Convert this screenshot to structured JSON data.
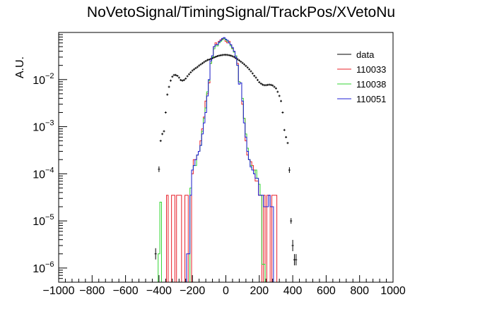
{
  "chart_data": {
    "type": "histogram",
    "title": "NoVetoSignal/TimingSignal/TrackPos/XVetoNu",
    "xlabel": "",
    "ylabel": "A.U.",
    "xlim": [
      -1000,
      1000
    ],
    "ylim": [
      5e-07,
      0.1
    ],
    "yscale": "log",
    "grid": false,
    "legend_position": "top-right",
    "x_tick_labels": [
      "−1000",
      "−800",
      "−600",
      "−400",
      "−200",
      "0",
      "200",
      "400",
      "600",
      "800",
      "1000"
    ],
    "y_tick_labels": [
      "10",
      "10",
      "10",
      "10",
      "10"
    ],
    "y_tick_exponents": [
      "−6",
      "−5",
      "−4",
      "−3",
      "−2"
    ],
    "series": [
      {
        "name": "data",
        "color": "#000000",
        "style": "points",
        "x": [
          -420,
          -400,
          -390,
          -380,
          -370,
          -360,
          -350,
          -340,
          -330,
          -320,
          -310,
          -300,
          -290,
          -280,
          -270,
          -260,
          -250,
          -240,
          -230,
          -220,
          -210,
          -200,
          -190,
          -180,
          -170,
          -160,
          -150,
          -140,
          -130,
          -120,
          -110,
          -100,
          -90,
          -80,
          -70,
          -60,
          -50,
          -40,
          -30,
          -20,
          -10,
          0,
          10,
          20,
          30,
          40,
          50,
          60,
          70,
          80,
          90,
          100,
          110,
          120,
          130,
          140,
          150,
          160,
          170,
          180,
          190,
          200,
          210,
          220,
          230,
          240,
          250,
          260,
          270,
          280,
          290,
          300,
          310,
          320,
          330,
          340,
          350,
          360,
          370,
          380,
          390,
          400,
          410,
          420
        ],
        "y": [
          2e-06,
          0.000125,
          0.0005,
          0.0007,
          0.0008,
          0.002,
          0.0048,
          0.007,
          0.0095,
          0.0115,
          0.0125,
          0.0125,
          0.012,
          0.011,
          0.0098,
          0.0095,
          0.0098,
          0.0105,
          0.0118,
          0.013,
          0.0142,
          0.0155,
          0.0165,
          0.0175,
          0.0185,
          0.0198,
          0.021,
          0.0222,
          0.0235,
          0.0248,
          0.026,
          0.0265,
          0.0275,
          0.0285,
          0.0295,
          0.0305,
          0.0315,
          0.0322,
          0.0328,
          0.0332,
          0.0335,
          0.0335,
          0.0333,
          0.0328,
          0.0322,
          0.0312,
          0.03,
          0.0285,
          0.027,
          0.0255,
          0.024,
          0.0225,
          0.021,
          0.0195,
          0.018,
          0.0165,
          0.015,
          0.0135,
          0.012,
          0.011,
          0.0098,
          0.0088,
          0.0082,
          0.0078,
          0.0076,
          0.0076,
          0.0077,
          0.0078,
          0.0077,
          0.0075,
          0.007,
          0.0065,
          0.0055,
          0.0045,
          0.0035,
          0.002,
          0.00085,
          0.0006,
          0.00045,
          0.00012,
          1e-05,
          3e-06,
          1.5e-06,
          1.5e-06
        ]
      },
      {
        "name": "110033",
        "color": "#e8202a",
        "style": "step",
        "x": [
          -380,
          -370,
          -360,
          -350,
          -340,
          -330,
          -320,
          -310,
          -300,
          -290,
          -280,
          -270,
          -260,
          -250,
          -240,
          -230,
          -220,
          -210,
          -200,
          -190,
          -180,
          -170,
          -160,
          -150,
          -140,
          -130,
          -120,
          -110,
          -100,
          -90,
          -80,
          -70,
          -60,
          -50,
          -40,
          -30,
          -20,
          -10,
          0,
          10,
          20,
          30,
          40,
          50,
          60,
          70,
          80,
          90,
          100,
          110,
          120,
          130,
          140,
          150,
          160,
          170,
          180,
          190,
          200,
          210,
          220,
          230,
          240,
          250,
          260,
          270,
          280,
          290,
          300
        ],
        "y": [
          0,
          0,
          0,
          3.5e-05,
          0,
          0,
          3.5e-05,
          3.5e-05,
          0,
          3.5e-05,
          3.5e-05,
          3.5e-05,
          0,
          0,
          3.5e-05,
          3.5e-05,
          0,
          0,
          0.0001,
          0.0002,
          0.0002,
          0.00025,
          0.0003,
          0.0005,
          0.0009,
          0.0016,
          0.0035,
          0.005,
          0.0085,
          0.022,
          0.032,
          0.05,
          0.06,
          0.055,
          0.065,
          0.07,
          0.072,
          0.075,
          0.065,
          0.06,
          0.065,
          0.055,
          0.046,
          0.04,
          0.032,
          0.022,
          0.009,
          0.0085,
          0.003,
          0.0015,
          0.0005,
          0.00025,
          0.0002,
          0.00018,
          0.00015,
          0.00012,
          7e-05,
          7e-05,
          3.5e-05,
          3.5e-05,
          0,
          3.5e-05,
          0,
          3.5e-05,
          3.5e-05,
          0,
          3.5e-05,
          3.5e-05,
          3.5e-05
        ]
      },
      {
        "name": "110038",
        "color": "#33d633",
        "style": "step",
        "x": [
          -400,
          -390,
          -380,
          -370,
          -360,
          -350,
          -340,
          -330,
          -320,
          -310,
          -300,
          -290,
          -280,
          -270,
          -260,
          -250,
          -240,
          -230,
          -220,
          -210,
          -200,
          -190,
          -180,
          -170,
          -160,
          -150,
          -140,
          -130,
          -120,
          -110,
          -100,
          -90,
          -80,
          -70,
          -60,
          -50,
          -40,
          -30,
          -20,
          -10,
          0,
          10,
          20,
          30,
          40,
          50,
          60,
          70,
          80,
          90,
          100,
          110,
          120,
          130,
          140,
          150,
          160,
          170,
          180,
          190,
          200,
          210,
          220,
          230
        ],
        "y": [
          2e-06,
          2.5e-05,
          0,
          0,
          0,
          0,
          0,
          0,
          0,
          0,
          0,
          0,
          0,
          0,
          0,
          0,
          0,
          0,
          0,
          5e-05,
          0.00012,
          0.00015,
          0.00015,
          0.00025,
          0.0003,
          0.0004,
          0.0008,
          0.0015,
          0.0025,
          0.0055,
          0.0095,
          0.022,
          0.03,
          0.045,
          0.052,
          0.052,
          0.06,
          0.065,
          0.07,
          0.075,
          0.07,
          0.065,
          0.06,
          0.052,
          0.045,
          0.038,
          0.032,
          0.02,
          0.009,
          0.0085,
          0.004,
          0.0015,
          0.0007,
          0.00035,
          0.0002,
          0.00015,
          0.00012,
          0.0001,
          0.00012,
          8e-05,
          6e-05,
          3.5e-05,
          1.2e-06,
          1.2e-06
        ]
      },
      {
        "name": "110051",
        "color": "#1f1fd6",
        "style": "step",
        "x": [
          -400,
          -390,
          -380,
          -370,
          -360,
          -350,
          -340,
          -330,
          -320,
          -310,
          -300,
          -290,
          -280,
          -270,
          -260,
          -250,
          -240,
          -230,
          -220,
          -210,
          -200,
          -190,
          -180,
          -170,
          -160,
          -150,
          -140,
          -130,
          -120,
          -110,
          -100,
          -90,
          -80,
          -70,
          -60,
          -50,
          -40,
          -30,
          -20,
          -10,
          0,
          10,
          20,
          30,
          40,
          50,
          60,
          70,
          80,
          90,
          100,
          110,
          120,
          130,
          140,
          150,
          160,
          170,
          180,
          190,
          200,
          210,
          220,
          230,
          240,
          250,
          260,
          270,
          280
        ],
        "y": [
          0,
          0,
          0,
          0,
          0,
          0,
          0,
          0,
          0,
          0,
          0,
          0,
          0,
          0,
          0,
          0,
          0,
          2e-06,
          2e-06,
          3.5e-05,
          0.00012,
          0.00015,
          0.0002,
          0.00025,
          0.0003,
          0.0004,
          0.0007,
          0.0012,
          0.002,
          0.0045,
          0.01,
          0.025,
          0.032,
          0.05,
          0.055,
          0.055,
          0.062,
          0.068,
          0.075,
          0.078,
          0.072,
          0.068,
          0.06,
          0.055,
          0.048,
          0.04,
          0.03,
          0.02,
          0.008,
          0.0085,
          0.0035,
          0.0012,
          0.0006,
          0.0003,
          0.0002,
          0.00014,
          0.00012,
          0.0001,
          8e-05,
          8e-05,
          3.5e-05,
          3.5e-05,
          3.5e-05,
          2e-05,
          2e-05,
          2e-05,
          3.5e-05,
          2e-05,
          2e-05
        ]
      }
    ]
  }
}
